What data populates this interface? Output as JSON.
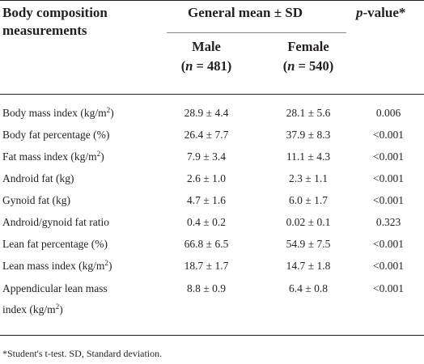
{
  "header": {
    "row_label_line1": "Body composition",
    "row_label_line2": "measurements",
    "group_label": "General mean ± SD",
    "p_label_italic": "p",
    "p_label_rest": "-value*",
    "male_label": "Male",
    "male_n_open": "(",
    "male_n_var": "n",
    "male_n_rest": " = 481)",
    "female_label": "Female",
    "female_n_open": "(",
    "female_n_var": "n",
    "female_n_rest": " = 540)"
  },
  "rows": [
    {
      "label": "Body mass index (kg/m",
      "sup": "2",
      "label_end": ")",
      "male": "28.9 ± 4.4",
      "female": "28.1 ± 5.6",
      "p": "0.006"
    },
    {
      "label": "Body fat percentage (%)",
      "sup": "",
      "label_end": "",
      "male": "26.4 ± 7.7",
      "female": "37.9 ± 8.3",
      "p": "<0.001"
    },
    {
      "label": "Fat mass index (kg/m",
      "sup": "2",
      "label_end": ")",
      "male": "7.9 ± 3.4",
      "female": "11.1 ± 4.3",
      "p": "<0.001"
    },
    {
      "label": "Android fat (kg)",
      "sup": "",
      "label_end": "",
      "male": "2.6 ± 1.0",
      "female": "2.3 ± 1.1",
      "p": "<0.001"
    },
    {
      "label": "Gynoid fat (kg)",
      "sup": "",
      "label_end": "",
      "male": "4.7 ± 1.6",
      "female": "6.0 ± 1.7",
      "p": "<0.001"
    },
    {
      "label": "Android/gynoid fat ratio",
      "sup": "",
      "label_end": "",
      "male": "0.4 ± 0.2",
      "female": "0.02 ± 0.1",
      "p": "0.323"
    },
    {
      "label": "Lean fat percentage (%)",
      "sup": "",
      "label_end": "",
      "male": "66.8 ± 6.5",
      "female": "54.9 ± 7.5",
      "p": "<0.001"
    },
    {
      "label": "Lean mass index (kg/m",
      "sup": "2",
      "label_end": ")",
      "male": "18.7 ± 1.7",
      "female": "14.7 ± 1.8",
      "p": "<0.001"
    },
    {
      "label": "Appendicular lean mass",
      "label_line2": "index (kg/m",
      "sup": "2",
      "label_end": ")",
      "male": "8.8 ± 0.9",
      "female": "6.4 ± 0.8",
      "p": "<0.001"
    }
  ],
  "footnote": "*Student's t-test. SD, Standard deviation."
}
